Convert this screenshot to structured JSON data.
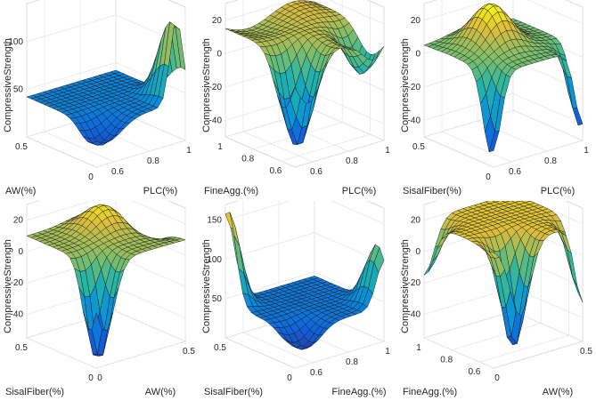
{
  "chart_data": [
    {
      "type": "surface",
      "zlabel": "CompressiveStrength",
      "xlabel": "PLC(%)",
      "ylabel": "AW(%)",
      "xticks": [
        "0.6",
        "0.8",
        "1"
      ],
      "yticks": [
        "0",
        "0.5"
      ],
      "zticks": [
        "50",
        "100"
      ],
      "xlim": [
        0.5,
        1
      ],
      "ylim": [
        0,
        0.5
      ],
      "zlim": [
        0,
        140
      ],
      "grid": true,
      "shape": {
        "base": 42,
        "bumps": [
          {
            "x": 0.95,
            "y": 0.02,
            "sx": 0.05,
            "sy": 0.13,
            "h": 90
          },
          {
            "x": 0.56,
            "y": 0.05,
            "sx": 0.12,
            "sy": 0.1,
            "h": -25
          }
        ],
        "ridge": 0
      }
    },
    {
      "type": "surface",
      "zlabel": "CompressiveStrength",
      "xlabel": "PLC(%)",
      "ylabel": "FineAgg.(%)",
      "xticks": [
        "0.6",
        "0.8",
        "1"
      ],
      "yticks": [
        "0.6",
        "0.8",
        "1"
      ],
      "zticks": [
        "-40",
        "-20",
        "0",
        "20"
      ],
      "xlim": [
        0.5,
        1
      ],
      "ylim": [
        0.5,
        1
      ],
      "zlim": [
        -50,
        30
      ],
      "grid": true,
      "shape": {
        "base": 15,
        "bumps": [
          {
            "x": 0.58,
            "y": 0.58,
            "sx": 0.1,
            "sy": 0.1,
            "h": -62
          },
          {
            "x": 0.95,
            "y": 0.6,
            "sx": 0.08,
            "sy": 0.12,
            "h": -25
          }
        ],
        "ridge": 4
      }
    },
    {
      "type": "surface",
      "zlabel": "CompressiveStrength",
      "xlabel": "PLC(%)",
      "ylabel": "SisalFiber(%)",
      "xticks": [
        "0.6",
        "0.8",
        "1"
      ],
      "yticks": [
        "0",
        "0.5"
      ],
      "zticks": [
        "-40",
        "-20",
        "0",
        "20"
      ],
      "xlim": [
        0.5,
        1
      ],
      "ylim": [
        0,
        0.5
      ],
      "zlim": [
        -50,
        30
      ],
      "grid": true,
      "shape": {
        "base": 5,
        "bumps": [
          {
            "x": 0.72,
            "y": 0.3,
            "sx": 0.12,
            "sy": 0.14,
            "h": 25
          },
          {
            "x": 0.5,
            "y": 0.02,
            "sx": 0.06,
            "sy": 0.08,
            "h": -48
          },
          {
            "x": 1.0,
            "y": 0.02,
            "sx": 0.06,
            "sy": 0.08,
            "h": -48
          }
        ],
        "ridge": 0
      }
    },
    {
      "type": "surface",
      "zlabel": "CompressiveStrength",
      "xlabel": "AW(%)",
      "ylabel": "SisalFiber(%)",
      "xticks": [
        "0",
        "0.5"
      ],
      "yticks": [
        "0",
        "0.5"
      ],
      "zticks": [
        "-40",
        "-20",
        "0",
        "20"
      ],
      "xlim": [
        0,
        0.5
      ],
      "ylim": [
        0,
        0.5
      ],
      "zlim": [
        -55,
        30
      ],
      "grid": true,
      "shape": {
        "base": 10,
        "bumps": [
          {
            "x": 0.05,
            "y": 0.05,
            "sx": 0.08,
            "sy": 0.08,
            "h": -65
          },
          {
            "x": 0.3,
            "y": 0.35,
            "sx": 0.12,
            "sy": 0.12,
            "h": 15
          },
          {
            "x": 0.48,
            "y": 0.3,
            "sx": 0.06,
            "sy": 0.15,
            "h": -15
          }
        ],
        "ridge": 0
      }
    },
    {
      "type": "surface",
      "zlabel": "CompressiveStrength",
      "xlabel": "FineAgg.(%)",
      "ylabel": "SisalFiber(%)",
      "xticks": [
        "0.6",
        "0.8",
        "1"
      ],
      "yticks": [
        "0",
        "0.5"
      ],
      "zticks": [
        "50",
        "100",
        "150"
      ],
      "xlim": [
        0.5,
        1
      ],
      "ylim": [
        0,
        0.5
      ],
      "zlim": [
        0,
        170
      ],
      "grid": true,
      "shape": {
        "base": 45,
        "bumps": [
          {
            "x": 0.5,
            "y": 0.48,
            "sx": 0.07,
            "sy": 0.08,
            "h": 120
          },
          {
            "x": 1.0,
            "y": 0.05,
            "sx": 0.06,
            "sy": 0.1,
            "h": 75
          },
          {
            "x": 0.58,
            "y": 0.05,
            "sx": 0.1,
            "sy": 0.1,
            "h": -30
          }
        ],
        "ridge": 0
      }
    },
    {
      "type": "surface",
      "zlabel": "CompressiveStrength",
      "xlabel": "AW(%)",
      "ylabel": "FineAgg.(%)",
      "xticks": [
        "0",
        "0.5"
      ],
      "yticks": [
        "0.6",
        "0.8",
        "1"
      ],
      "zticks": [
        "-40",
        "-20",
        "0",
        "20"
      ],
      "xlim": [
        0,
        0.5
      ],
      "ylim": [
        0.5,
        1
      ],
      "zlim": [
        -55,
        30
      ],
      "grid": true,
      "shape": {
        "base": 20,
        "bumps": [
          {
            "x": 0.15,
            "y": 0.55,
            "sx": 0.08,
            "sy": 0.08,
            "h": -70
          },
          {
            "x": 0.5,
            "y": 0.5,
            "sx": 0.06,
            "sy": 0.1,
            "h": -50
          },
          {
            "x": 0.0,
            "y": 1.0,
            "sx": 0.08,
            "sy": 0.1,
            "h": -35
          }
        ],
        "ridge": 0
      }
    }
  ]
}
